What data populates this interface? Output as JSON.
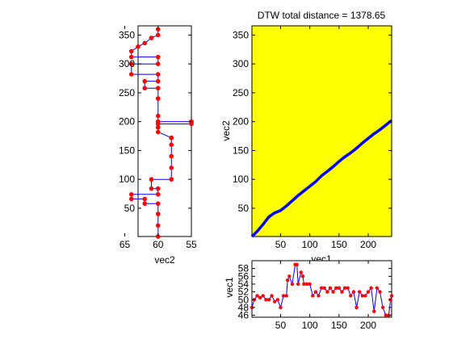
{
  "colors": {
    "background": "#ffffff",
    "axes_face_main": "#ffff00",
    "path_line": "#0000ff",
    "marker": "#ff0000",
    "frame": "#000000"
  },
  "chart_data": [
    {
      "id": "dtw_cost_matrix",
      "type": "line",
      "title": "DTW total distance = 1378.65",
      "xlabel": "vec1",
      "ylabel": "vec2",
      "xlim": [
        1,
        240
      ],
      "ylim": [
        1,
        366
      ],
      "xticks": [
        50,
        100,
        150,
        200
      ],
      "yticks": [
        50,
        100,
        150,
        200,
        250,
        300,
        350
      ],
      "grid": false,
      "series": [
        {
          "x": [
            1,
            10,
            20,
            30,
            40,
            50,
            60,
            70,
            80,
            90,
            100,
            110,
            120,
            130,
            140,
            150,
            160,
            170,
            180,
            190,
            200,
            210,
            220,
            230,
            240
          ],
          "y": [
            1,
            10,
            22,
            35,
            42,
            46,
            54,
            63,
            72,
            80,
            88,
            96,
            106,
            114,
            122,
            131,
            139,
            146,
            154,
            163,
            171,
            179,
            186,
            194,
            202
          ]
        }
      ]
    },
    {
      "id": "vec2_profile",
      "type": "line",
      "xlabel": "vec2",
      "ylabel": "",
      "xlim": [
        63,
        55
      ],
      "ylim": [
        1,
        366
      ],
      "xticks": [
        65,
        60,
        55
      ],
      "yticks": [
        50,
        100,
        150,
        200,
        250,
        300,
        350
      ],
      "grid": false,
      "series": [
        {
          "x": [
            60,
            60,
            60,
            60,
            62,
            62,
            64,
            64,
            60,
            60,
            61,
            61,
            58,
            58,
            58,
            58,
            58,
            58,
            60,
            60,
            60,
            55,
            55,
            55,
            60,
            60,
            60,
            60,
            62,
            62,
            60,
            60,
            64,
            64,
            60,
            60,
            64,
            64,
            63,
            62,
            61,
            60,
            60
          ],
          "y": [
            1,
            20,
            40,
            58,
            58,
            66,
            66,
            74,
            74,
            84,
            84,
            100,
            100,
            120,
            140,
            160,
            172,
            172,
            182,
            190,
            196,
            196,
            200,
            200,
            200,
            210,
            240,
            258,
            258,
            270,
            270,
            282,
            282,
            300,
            300,
            312,
            312,
            322,
            330,
            336,
            345,
            350,
            360
          ]
        }
      ]
    },
    {
      "id": "vec1_profile",
      "type": "line",
      "xlabel": "",
      "ylabel": "vec1",
      "xlim": [
        1,
        240
      ],
      "ylim": [
        45.5,
        60
      ],
      "xticks": [
        50,
        100,
        150,
        200
      ],
      "yticks": [
        46,
        48,
        50,
        52,
        54,
        56,
        58
      ],
      "grid": false,
      "series": [
        {
          "x": [
            1,
            5,
            10,
            15,
            20,
            25,
            30,
            35,
            40,
            45,
            50,
            55,
            60,
            62,
            65,
            70,
            75,
            78,
            80,
            85,
            88,
            90,
            95,
            100,
            105,
            110,
            115,
            120,
            125,
            130,
            135,
            140,
            145,
            150,
            155,
            160,
            165,
            170,
            175,
            180,
            185,
            190,
            195,
            200,
            205,
            210,
            215,
            220,
            225,
            230,
            235,
            238,
            240
          ],
          "y": [
            48,
            50,
            51,
            50.5,
            51,
            50,
            50,
            51,
            49.5,
            50,
            48,
            51,
            51,
            55,
            56,
            54,
            59,
            59,
            54,
            57,
            56,
            54,
            54,
            54,
            51,
            52,
            51,
            53,
            53,
            52,
            53,
            52,
            53,
            53,
            52,
            53,
            53,
            51,
            52,
            48,
            52,
            51,
            51,
            52,
            53,
            47,
            53,
            52,
            48,
            46,
            46,
            50,
            51
          ]
        }
      ]
    }
  ]
}
